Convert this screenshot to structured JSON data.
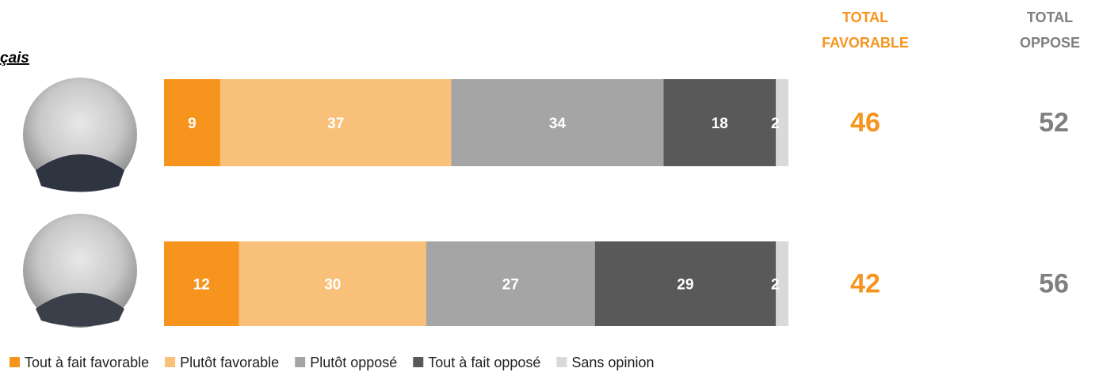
{
  "chart_data": {
    "type": "bar",
    "orientation": "horizontal",
    "stacked": true,
    "title": "çais",
    "categories": [
      null,
      null
    ],
    "xlim": [
      0,
      100
    ],
    "series": [
      {
        "name": "Tout à fait favorable",
        "color": "#f7941d",
        "values": [
          9,
          12
        ]
      },
      {
        "name": "Plutôt favorable",
        "color": "#f9c07a",
        "values": [
          37,
          30
        ]
      },
      {
        "name": "Plutôt opposé",
        "color": "#a5a5a5",
        "values": [
          34,
          27
        ]
      },
      {
        "name": "Tout à fait opposé",
        "color": "#595959",
        "values": [
          18,
          29
        ]
      },
      {
        "name": "Sans opinion",
        "color": "#d9d9d9",
        "values": [
          2,
          2
        ]
      }
    ],
    "totals": [
      {
        "header": "TOTAL FAVORABLE",
        "color": "#f7941d",
        "values": [
          46,
          42
        ]
      },
      {
        "header": "TOTAL OPPOSE",
        "color": "#7f7f7f",
        "values": [
          52,
          56
        ]
      }
    ],
    "legend": "bottom"
  }
}
